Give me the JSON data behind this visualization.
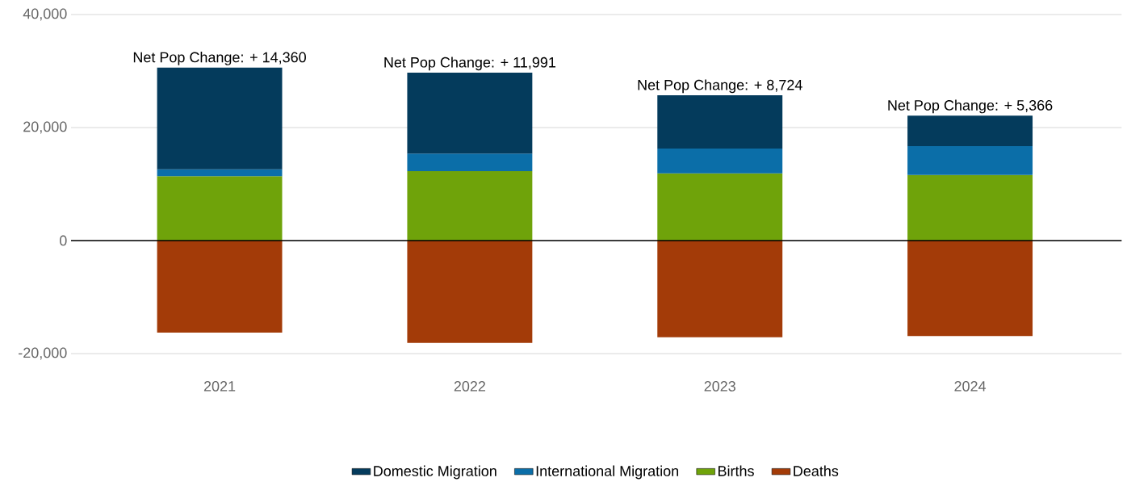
{
  "chart_data": {
    "type": "bar",
    "stacked": true,
    "categories": [
      "2021",
      "2022",
      "2023",
      "2024"
    ],
    "series": [
      {
        "name": "Births",
        "color": "#6fa30a",
        "values": [
          11400,
          12300,
          11900,
          11600
        ]
      },
      {
        "name": "International Migration",
        "color": "#0b6ea8",
        "values": [
          1200,
          3100,
          4400,
          5100
        ]
      },
      {
        "name": "Domestic Migration",
        "color": "#043b5c",
        "values": [
          18000,
          14300,
          9400,
          5400
        ]
      },
      {
        "name": "Deaths",
        "color": "#a33b08",
        "values": [
          -16300,
          -18100,
          -17100,
          -16900
        ]
      }
    ],
    "ylim": [
      -20000,
      40000
    ],
    "yticks": [
      {
        "value": -20000,
        "label": "-20,000"
      },
      0,
      {
        "value": 20000,
        "label": "20,000"
      },
      {
        "value": 40000,
        "label": "40,000"
      }
    ],
    "grid": "y",
    "legend": "bottom",
    "ref_lines": [
      {
        "axis": "y",
        "value": 0,
        "color": "#000000"
      }
    ],
    "annotations": [
      {
        "text": "Net Pop Change: + 14,360",
        "x": "2021",
        "y": 30600
      },
      {
        "text": "Net Pop Change: + 11,991",
        "x": "2022",
        "y": 29700
      },
      {
        "text": "Net Pop Change: +  8,724",
        "x": "2023",
        "y": 25700
      },
      {
        "text": "Net Pop Change: +  5,366",
        "x": "2024",
        "y": 22100
      }
    ]
  }
}
